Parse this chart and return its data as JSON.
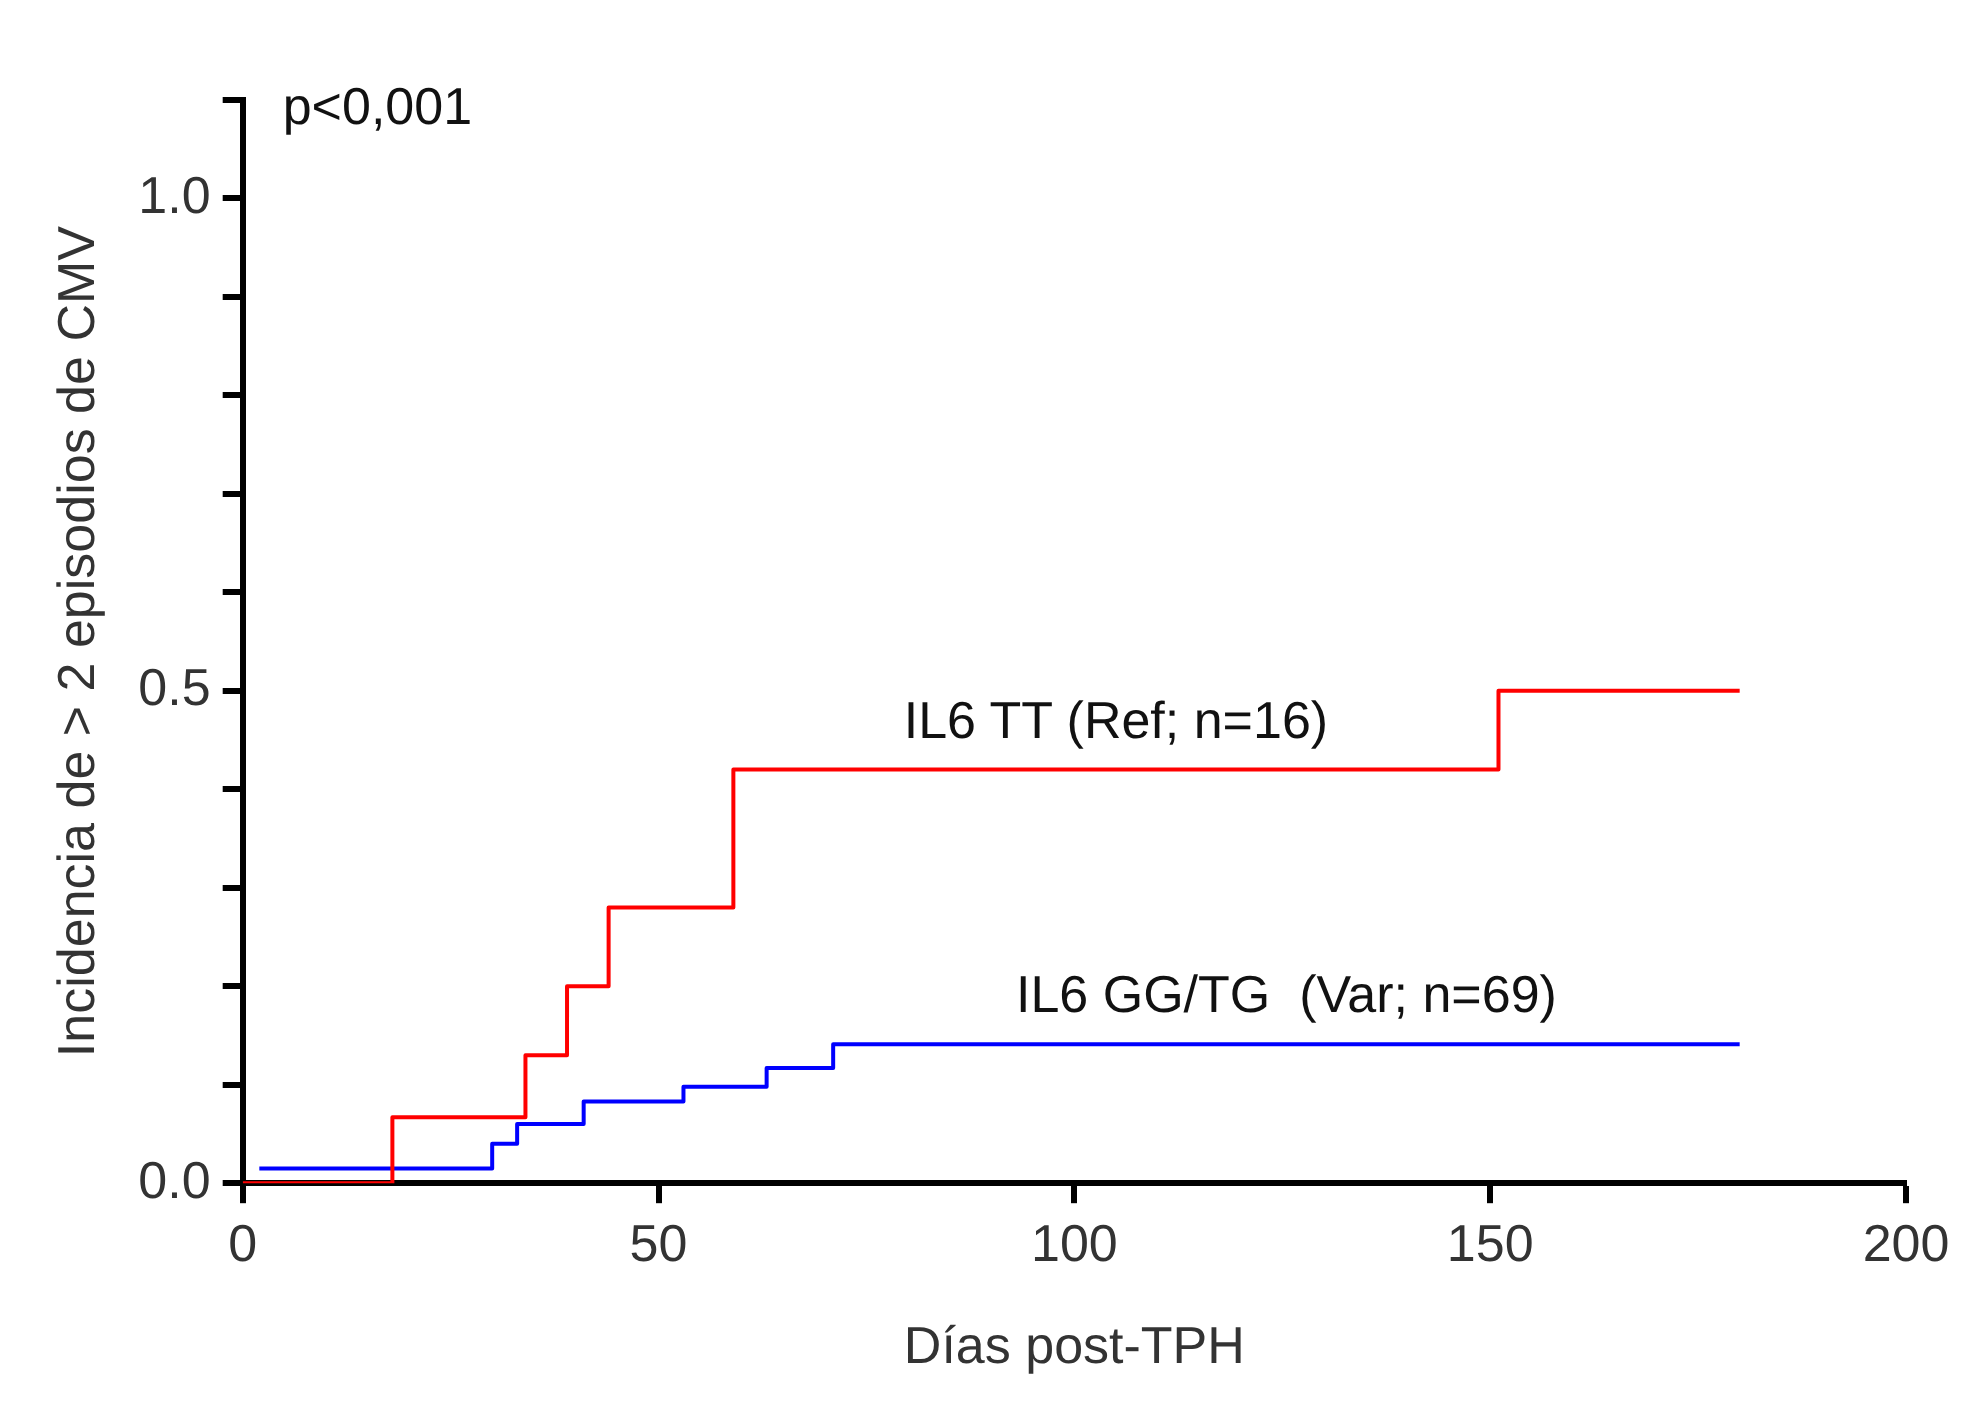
{
  "chart_data": {
    "type": "step",
    "xlabel": "Días post-TPH",
    "ylabel": "Incidencia de > 2 episodios de CMV",
    "annotations": [
      "p<0,001"
    ],
    "series": [
      {
        "name": "IL6 TT (Ref; n=16)",
        "color": "#ff0000",
        "x": [
          0,
          18,
          34,
          39,
          44,
          59,
          151,
          180
        ],
        "values": [
          0,
          0.067,
          0.13,
          0.2,
          0.28,
          0.42,
          0.5,
          0.5
        ]
      },
      {
        "name": "IL6 GG/TG  (Var; n=69)",
        "color": "#0000ff",
        "x": [
          2,
          30,
          33,
          41,
          53,
          63,
          71,
          180
        ],
        "values": [
          0.015,
          0.04,
          0.06,
          0.083,
          0.098,
          0.117,
          0.141,
          0.141
        ]
      }
    ],
    "xlim": [
      0,
      200
    ],
    "xticks": [
      0,
      50,
      100,
      150,
      200
    ],
    "ylim": [
      0,
      1.1
    ],
    "yticks": [
      {
        "value": 0,
        "label": "0.0"
      },
      {
        "value": 0.1,
        "label": null
      },
      {
        "value": 0.2,
        "label": null
      },
      {
        "value": 0.3,
        "label": null
      },
      {
        "value": 0.4,
        "label": null
      },
      {
        "value": 0.5,
        "label": "0.5"
      },
      {
        "value": 0.6,
        "label": null
      },
      {
        "value": 0.7,
        "label": null
      },
      {
        "value": 0.8,
        "label": null
      },
      {
        "value": 0.9,
        "label": null
      },
      {
        "value": 1,
        "label": "1.0"
      },
      {
        "value": 1.1,
        "label": null
      }
    ],
    "grid": false,
    "legend": false,
    "marker": "none",
    "line_style": "solid"
  }
}
